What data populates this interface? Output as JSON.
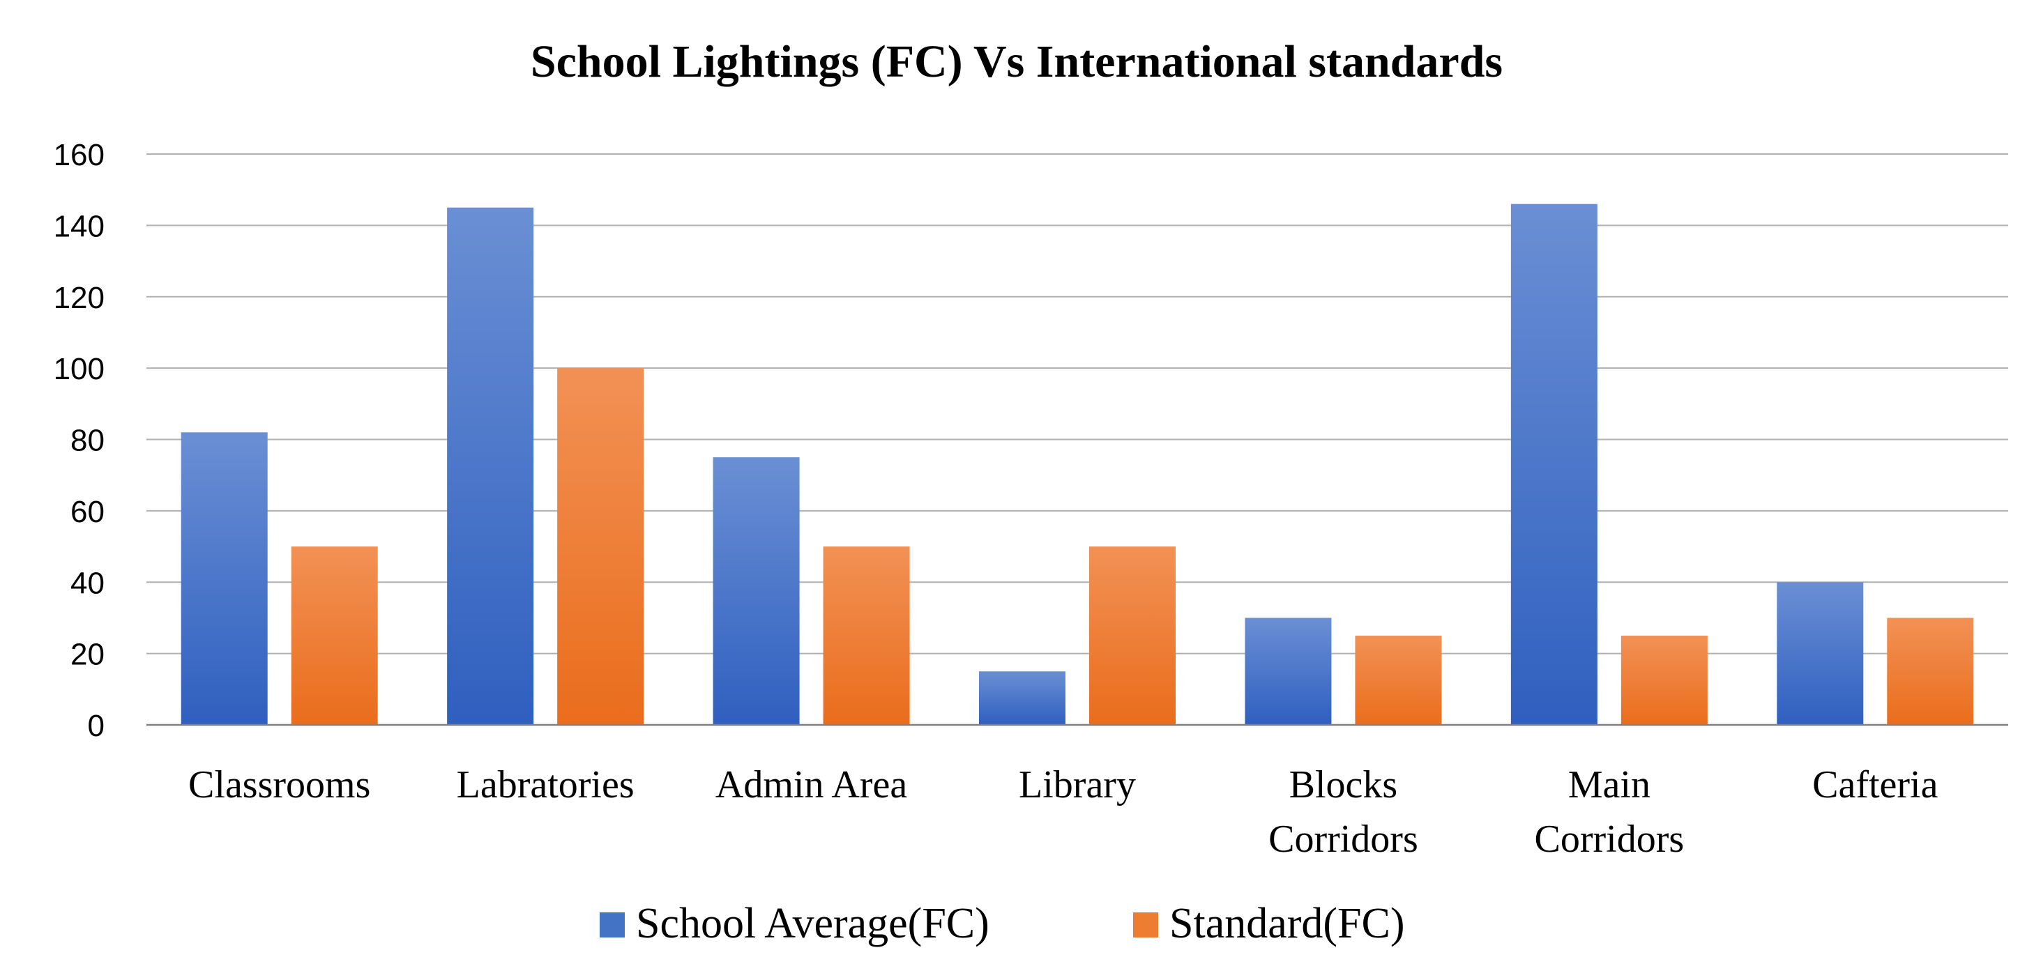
{
  "chart_data": {
    "type": "bar",
    "title": "School Lightings (FC) Vs International standards",
    "categories": [
      [
        "Classrooms"
      ],
      [
        "Labratories"
      ],
      [
        "Admin Area"
      ],
      [
        "Library"
      ],
      [
        "Blocks",
        "Corridors"
      ],
      [
        "Main",
        "Corridors"
      ],
      [
        "Cafteria"
      ]
    ],
    "series": [
      {
        "name": "School Average(FC)",
        "color": "#4472c4",
        "color_light": "#6a8fd4",
        "color_dark": "#2f5fbf",
        "values": [
          82,
          145,
          75,
          15,
          30,
          146,
          40
        ]
      },
      {
        "name": "Standard(FC)",
        "color": "#ed7d31",
        "color_light": "#f29155",
        "color_dark": "#ea6d1c",
        "values": [
          50,
          100,
          50,
          50,
          25,
          25,
          30
        ]
      }
    ],
    "ylim": [
      0,
      160
    ],
    "yticks": [
      0,
      20,
      40,
      60,
      80,
      100,
      120,
      140,
      160
    ],
    "grid": true,
    "legend": "bottom",
    "xlabel": "",
    "ylabel": ""
  }
}
